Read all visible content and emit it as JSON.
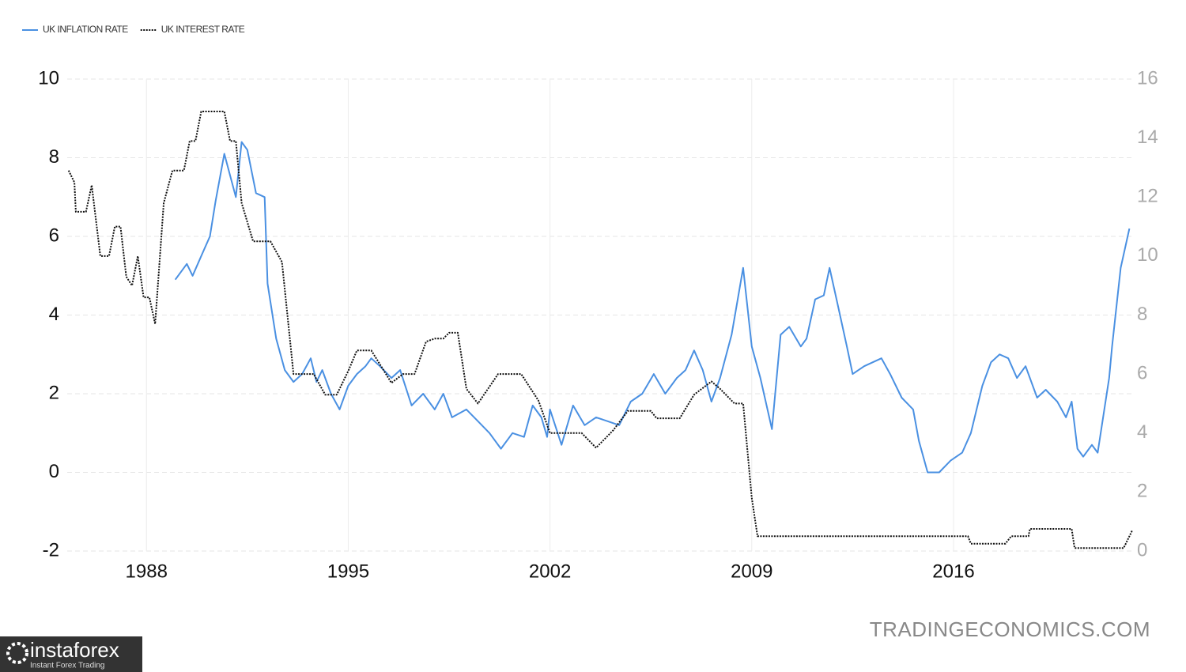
{
  "chart_data": {
    "type": "line",
    "legend": "top-left",
    "grid": true,
    "watermark": "TRADINGECONOMICS.COM",
    "logo": {
      "name": "instaforex",
      "tagline": "Instant Forex Trading"
    },
    "xlim": [
      1985.25,
      2022.2
    ],
    "xticks": [
      1988,
      1995,
      2002,
      2009,
      2016
    ],
    "ylim": [
      -2,
      10
    ],
    "yticks": [
      10,
      8,
      6,
      4,
      2,
      0,
      -2
    ],
    "y2lim": [
      0,
      16
    ],
    "y2ticks": [
      16,
      14,
      12,
      10,
      8,
      6,
      4,
      2,
      0
    ],
    "series": [
      {
        "name": "UK INFLATION RATE",
        "color": "#4a90e2",
        "style": "solid",
        "x": [
          1989.0,
          1989.4,
          1989.6,
          1989.9,
          1990.2,
          1990.4,
          1990.7,
          1991.1,
          1991.3,
          1991.5,
          1991.8,
          1992.1,
          1992.2,
          1992.5,
          1992.8,
          1993.1,
          1993.4,
          1993.7,
          1993.9,
          1994.1,
          1994.4,
          1994.7,
          1995.0,
          1995.3,
          1995.6,
          1995.8,
          1996.1,
          1996.5,
          1996.8,
          1997.2,
          1997.6,
          1998.0,
          1998.3,
          1998.6,
          1999.1,
          1999.5,
          1999.9,
          2000.3,
          2000.7,
          2001.1,
          2001.4,
          2001.7,
          2001.9,
          2002.0,
          2002.4,
          2002.8,
          2003.2,
          2003.6,
          2004.0,
          2004.4,
          2004.8,
          2005.2,
          2005.6,
          2006.0,
          2006.4,
          2006.7,
          2007.0,
          2007.3,
          2007.6,
          2007.9,
          2008.3,
          2008.7,
          2009.0,
          2009.3,
          2009.7,
          2010.0,
          2010.3,
          2010.7,
          2010.9,
          2011.2,
          2011.5,
          2011.7,
          2012.0,
          2012.3,
          2012.5,
          2012.9,
          2013.2,
          2013.5,
          2013.8,
          2014.2,
          2014.6,
          2014.8,
          2015.1,
          2015.5,
          2015.9,
          2016.3,
          2016.6,
          2017.0,
          2017.3,
          2017.6,
          2017.9,
          2018.2,
          2018.5,
          2018.9,
          2019.2,
          2019.6,
          2019.9,
          2020.1,
          2020.3,
          2020.5,
          2020.8,
          2021.0,
          2021.4,
          2021.5,
          2021.8,
          2022.1
        ],
        "values": [
          4.9,
          5.3,
          5.0,
          5.5,
          6.0,
          6.9,
          8.1,
          7.0,
          8.4,
          8.2,
          7.1,
          7.0,
          4.8,
          3.4,
          2.6,
          2.3,
          2.5,
          2.9,
          2.3,
          2.6,
          2.0,
          1.6,
          2.2,
          2.5,
          2.7,
          2.9,
          2.7,
          2.4,
          2.6,
          1.7,
          2.0,
          1.6,
          2.0,
          1.4,
          1.6,
          1.3,
          1.0,
          0.6,
          1.0,
          0.9,
          1.7,
          1.4,
          0.9,
          1.6,
          0.7,
          1.7,
          1.2,
          1.4,
          1.3,
          1.2,
          1.8,
          2.0,
          2.5,
          2.0,
          2.4,
          2.6,
          3.1,
          2.6,
          1.8,
          2.4,
          3.5,
          5.2,
          3.2,
          2.4,
          1.1,
          3.5,
          3.7,
          3.2,
          3.4,
          4.4,
          4.5,
          5.2,
          4.2,
          3.2,
          2.5,
          2.7,
          2.8,
          2.9,
          2.5,
          1.9,
          1.6,
          0.8,
          0.0,
          0.0,
          0.3,
          0.5,
          1.0,
          2.2,
          2.8,
          3.0,
          2.9,
          2.4,
          2.7,
          1.9,
          2.1,
          1.8,
          1.4,
          1.8,
          0.6,
          0.4,
          0.7,
          0.5,
          2.4,
          3.2,
          5.2,
          6.2
        ]
      },
      {
        "name": "UK INTEREST RATE",
        "color": "#111111",
        "style": "dotted",
        "axis": "y2",
        "x": [
          1985.3,
          1985.5,
          1985.55,
          1985.9,
          1986.1,
          1986.4,
          1986.7,
          1986.9,
          1987.1,
          1987.3,
          1987.5,
          1987.7,
          1987.9,
          1988.1,
          1988.3,
          1988.6,
          1988.9,
          1989.3,
          1989.5,
          1989.7,
          1989.9,
          1990.7,
          1990.9,
          1991.1,
          1991.3,
          1991.7,
          1992.3,
          1992.7,
          1993.1,
          1993.8,
          1994.2,
          1994.6,
          1995.0,
          1995.3,
          1995.8,
          1996.5,
          1996.9,
          1997.3,
          1997.7,
          1998.0,
          1998.3,
          1998.5,
          1998.8,
          1999.1,
          1999.5,
          2000.2,
          2001.0,
          2001.6,
          2002.0,
          2003.1,
          2003.6,
          2004.2,
          2004.7,
          2005.5,
          2005.7,
          2006.5,
          2007.0,
          2007.6,
          2007.9,
          2008.4,
          2008.7,
          2009.0,
          2009.2,
          2016.5,
          2016.6,
          2017.8,
          2018.0,
          2018.6,
          2018.65,
          2020.1,
          2020.2,
          2021.9,
          2022.2
        ],
        "values": [
          12.9,
          12.5,
          11.5,
          11.5,
          12.4,
          10.0,
          10.0,
          11.0,
          11.0,
          9.3,
          9.0,
          10.0,
          8.6,
          8.6,
          7.7,
          11.8,
          12.9,
          12.9,
          13.9,
          13.9,
          14.9,
          14.9,
          13.9,
          13.9,
          11.8,
          10.5,
          10.5,
          9.8,
          6.0,
          6.0,
          5.3,
          5.3,
          6.1,
          6.8,
          6.8,
          5.7,
          6.0,
          6.0,
          7.1,
          7.2,
          7.2,
          7.4,
          7.4,
          5.5,
          5.0,
          6.0,
          6.0,
          5.1,
          4.0,
          4.0,
          3.5,
          4.1,
          4.75,
          4.75,
          4.5,
          4.5,
          5.3,
          5.75,
          5.5,
          5.0,
          5.0,
          1.8,
          0.5,
          0.5,
          0.25,
          0.25,
          0.5,
          0.5,
          0.75,
          0.75,
          0.1,
          0.1,
          0.7
        ]
      }
    ]
  }
}
